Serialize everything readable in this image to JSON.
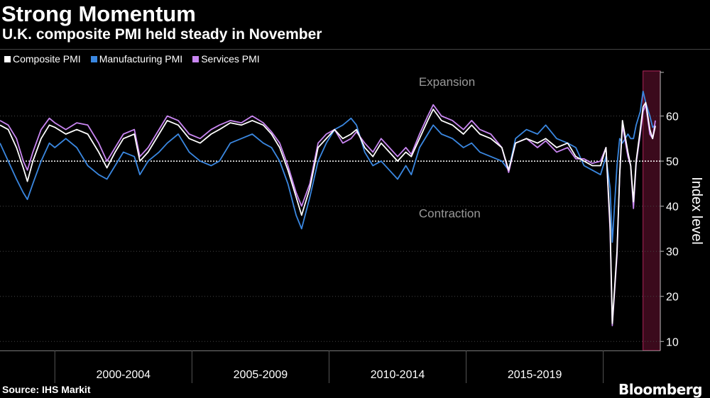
{
  "header": {
    "title": "Strong Momentum",
    "subtitle": "U.K. composite PMI held steady in November"
  },
  "legend": [
    {
      "label": "Composite PMI",
      "color": "#ffffff"
    },
    {
      "label": "Manufacturing PMI",
      "color": "#3a87e0"
    },
    {
      "label": "Services PMI",
      "color": "#c986f2"
    }
  ],
  "footer": {
    "source": "Source: IHS Markit",
    "brand": "Bloomberg"
  },
  "chart_data": {
    "type": "line",
    "title": "Strong Momentum",
    "subtitle": "U.K. composite PMI held steady in November",
    "ylabel": "Index level",
    "xlabel": "",
    "ylim": [
      8,
      70
    ],
    "yticks": [
      10,
      20,
      30,
      40,
      50,
      60
    ],
    "x_start": "1998-01",
    "x_end": "2021-11",
    "x_groups": [
      {
        "label": "2000-2004",
        "from": 2000,
        "to": 2005
      },
      {
        "label": "2005-2009",
        "from": 2005,
        "to": 2010
      },
      {
        "label": "2010-2014",
        "from": 2010,
        "to": 2015
      },
      {
        "label": "2015-2019",
        "from": 2015,
        "to": 2020
      }
    ],
    "x_separators": [
      2000,
      2005,
      2010,
      2015,
      2020
    ],
    "reference_line": 50,
    "annotations": [
      {
        "text": "Expansion",
        "x": 2014.3,
        "y": 67.5
      },
      {
        "text": "Contraction",
        "x": 2014.4,
        "y": 38.3
      }
    ],
    "highlight": {
      "from": 2021.45,
      "to": 2022.08
    },
    "series": [
      {
        "name": "Composite PMI",
        "color": "#ffffff",
        "points": [
          [
            1998.0,
            58
          ],
          [
            1998.3,
            57
          ],
          [
            1998.6,
            53
          ],
          [
            1998.85,
            48.5
          ],
          [
            1999.0,
            45.5
          ],
          [
            1999.2,
            50
          ],
          [
            1999.5,
            55
          ],
          [
            1999.8,
            58
          ],
          [
            2000.0,
            57.5
          ],
          [
            2000.4,
            56
          ],
          [
            2000.8,
            57
          ],
          [
            2001.2,
            56
          ],
          [
            2001.6,
            52
          ],
          [
            2001.9,
            48.5
          ],
          [
            2002.2,
            52
          ],
          [
            2002.5,
            55
          ],
          [
            2002.9,
            56
          ],
          [
            2003.1,
            50
          ],
          [
            2003.4,
            52
          ],
          [
            2003.8,
            56
          ],
          [
            2004.1,
            59
          ],
          [
            2004.5,
            58
          ],
          [
            2004.9,
            55
          ],
          [
            2005.3,
            54
          ],
          [
            2005.7,
            56
          ],
          [
            2006.0,
            57
          ],
          [
            2006.4,
            58.5
          ],
          [
            2006.8,
            58
          ],
          [
            2007.2,
            59
          ],
          [
            2007.6,
            58
          ],
          [
            2007.9,
            56
          ],
          [
            2008.2,
            53
          ],
          [
            2008.5,
            48
          ],
          [
            2008.8,
            42
          ],
          [
            2009.0,
            38
          ],
          [
            2009.3,
            44
          ],
          [
            2009.6,
            53
          ],
          [
            2009.9,
            55
          ],
          [
            2010.2,
            57
          ],
          [
            2010.5,
            55
          ],
          [
            2010.8,
            56
          ],
          [
            2011.0,
            57
          ],
          [
            2011.3,
            53
          ],
          [
            2011.6,
            51
          ],
          [
            2011.9,
            54
          ],
          [
            2012.2,
            52
          ],
          [
            2012.5,
            50
          ],
          [
            2012.8,
            52
          ],
          [
            2013.0,
            51
          ],
          [
            2013.3,
            55
          ],
          [
            2013.6,
            59
          ],
          [
            2013.8,
            61.5
          ],
          [
            2014.1,
            59
          ],
          [
            2014.5,
            58
          ],
          [
            2014.9,
            56
          ],
          [
            2015.2,
            58
          ],
          [
            2015.5,
            56
          ],
          [
            2015.9,
            55
          ],
          [
            2016.3,
            53
          ],
          [
            2016.55,
            48
          ],
          [
            2016.8,
            54
          ],
          [
            2017.2,
            55
          ],
          [
            2017.6,
            54
          ],
          [
            2017.9,
            55
          ],
          [
            2018.3,
            53
          ],
          [
            2018.7,
            54
          ],
          [
            2019.0,
            51
          ],
          [
            2019.3,
            50
          ],
          [
            2019.6,
            49
          ],
          [
            2019.9,
            49
          ],
          [
            2020.1,
            53
          ],
          [
            2020.25,
            36
          ],
          [
            2020.33,
            14
          ],
          [
            2020.5,
            30
          ],
          [
            2020.6,
            47
          ],
          [
            2020.7,
            59
          ],
          [
            2020.9,
            52
          ],
          [
            2021.0,
            49
          ],
          [
            2021.1,
            41
          ],
          [
            2021.2,
            50
          ],
          [
            2021.35,
            57
          ],
          [
            2021.45,
            62
          ],
          [
            2021.55,
            63
          ],
          [
            2021.7,
            57
          ],
          [
            2021.8,
            55
          ],
          [
            2021.9,
            57.8
          ]
        ]
      },
      {
        "name": "Manufacturing PMI",
        "color": "#3a87e0",
        "points": [
          [
            1998.0,
            54
          ],
          [
            1998.3,
            50
          ],
          [
            1998.6,
            46
          ],
          [
            1998.85,
            43
          ],
          [
            1999.0,
            41.5
          ],
          [
            1999.2,
            45
          ],
          [
            1999.5,
            50
          ],
          [
            1999.8,
            54
          ],
          [
            2000.0,
            53
          ],
          [
            2000.4,
            55
          ],
          [
            2000.8,
            53
          ],
          [
            2001.2,
            49
          ],
          [
            2001.6,
            47
          ],
          [
            2001.9,
            46
          ],
          [
            2002.2,
            49
          ],
          [
            2002.5,
            52
          ],
          [
            2002.9,
            51
          ],
          [
            2003.1,
            47
          ],
          [
            2003.4,
            50
          ],
          [
            2003.8,
            52
          ],
          [
            2004.1,
            54
          ],
          [
            2004.5,
            56
          ],
          [
            2004.9,
            52
          ],
          [
            2005.3,
            50
          ],
          [
            2005.7,
            49
          ],
          [
            2006.0,
            50
          ],
          [
            2006.4,
            54
          ],
          [
            2006.8,
            55
          ],
          [
            2007.2,
            56
          ],
          [
            2007.6,
            54
          ],
          [
            2007.9,
            53
          ],
          [
            2008.2,
            50
          ],
          [
            2008.5,
            45
          ],
          [
            2008.8,
            38
          ],
          [
            2009.0,
            35
          ],
          [
            2009.3,
            42
          ],
          [
            2009.6,
            50
          ],
          [
            2009.9,
            54
          ],
          [
            2010.2,
            57
          ],
          [
            2010.5,
            58
          ],
          [
            2010.8,
            59.5
          ],
          [
            2011.0,
            58
          ],
          [
            2011.3,
            52
          ],
          [
            2011.6,
            49
          ],
          [
            2011.9,
            50
          ],
          [
            2012.2,
            48
          ],
          [
            2012.5,
            46
          ],
          [
            2012.8,
            49
          ],
          [
            2013.0,
            47
          ],
          [
            2013.3,
            53
          ],
          [
            2013.6,
            56
          ],
          [
            2013.8,
            58
          ],
          [
            2014.1,
            56
          ],
          [
            2014.5,
            55
          ],
          [
            2014.9,
            53
          ],
          [
            2015.2,
            54
          ],
          [
            2015.5,
            52
          ],
          [
            2015.9,
            51
          ],
          [
            2016.3,
            50
          ],
          [
            2016.55,
            48
          ],
          [
            2016.8,
            55
          ],
          [
            2017.2,
            57
          ],
          [
            2017.6,
            56
          ],
          [
            2017.9,
            58
          ],
          [
            2018.3,
            55
          ],
          [
            2018.7,
            54
          ],
          [
            2019.0,
            53
          ],
          [
            2019.3,
            49
          ],
          [
            2019.6,
            48
          ],
          [
            2019.9,
            47
          ],
          [
            2020.1,
            51
          ],
          [
            2020.25,
            44
          ],
          [
            2020.33,
            32
          ],
          [
            2020.5,
            49
          ],
          [
            2020.6,
            55
          ],
          [
            2020.7,
            54
          ],
          [
            2020.9,
            56
          ],
          [
            2021.0,
            55
          ],
          [
            2021.1,
            55
          ],
          [
            2021.2,
            58
          ],
          [
            2021.35,
            61
          ],
          [
            2021.45,
            65.5
          ],
          [
            2021.55,
            63
          ],
          [
            2021.7,
            60
          ],
          [
            2021.8,
            57.5
          ],
          [
            2021.9,
            58
          ]
        ]
      },
      {
        "name": "Services PMI",
        "color": "#c986f2",
        "points": [
          [
            1998.0,
            59
          ],
          [
            1998.3,
            58
          ],
          [
            1998.6,
            55
          ],
          [
            1998.85,
            50
          ],
          [
            1999.0,
            48
          ],
          [
            1999.2,
            52
          ],
          [
            1999.5,
            57
          ],
          [
            1999.8,
            59.5
          ],
          [
            2000.0,
            58.5
          ],
          [
            2000.4,
            57
          ],
          [
            2000.8,
            58.5
          ],
          [
            2001.2,
            58
          ],
          [
            2001.6,
            54
          ],
          [
            2001.9,
            50
          ],
          [
            2002.2,
            53
          ],
          [
            2002.5,
            56
          ],
          [
            2002.9,
            57
          ],
          [
            2003.1,
            51
          ],
          [
            2003.4,
            53
          ],
          [
            2003.8,
            57
          ],
          [
            2004.1,
            60
          ],
          [
            2004.5,
            59
          ],
          [
            2004.9,
            56
          ],
          [
            2005.3,
            55
          ],
          [
            2005.7,
            57
          ],
          [
            2006.0,
            58
          ],
          [
            2006.4,
            59
          ],
          [
            2006.8,
            58.5
          ],
          [
            2007.2,
            60
          ],
          [
            2007.6,
            58.5
          ],
          [
            2007.9,
            56.5
          ],
          [
            2008.2,
            54
          ],
          [
            2008.5,
            49
          ],
          [
            2008.8,
            43
          ],
          [
            2009.0,
            40
          ],
          [
            2009.3,
            45
          ],
          [
            2009.6,
            54
          ],
          [
            2009.9,
            56
          ],
          [
            2010.2,
            57
          ],
          [
            2010.5,
            54
          ],
          [
            2010.8,
            55
          ],
          [
            2011.0,
            56.5
          ],
          [
            2011.3,
            54
          ],
          [
            2011.6,
            52
          ],
          [
            2011.9,
            55
          ],
          [
            2012.2,
            53
          ],
          [
            2012.5,
            51
          ],
          [
            2012.8,
            53
          ],
          [
            2013.0,
            51.5
          ],
          [
            2013.3,
            56
          ],
          [
            2013.6,
            60
          ],
          [
            2013.8,
            62.5
          ],
          [
            2014.1,
            60
          ],
          [
            2014.5,
            59
          ],
          [
            2014.9,
            57
          ],
          [
            2015.2,
            59
          ],
          [
            2015.5,
            57
          ],
          [
            2015.9,
            56
          ],
          [
            2016.3,
            53
          ],
          [
            2016.55,
            47.5
          ],
          [
            2016.8,
            54
          ],
          [
            2017.2,
            55
          ],
          [
            2017.6,
            53
          ],
          [
            2017.9,
            54.5
          ],
          [
            2018.3,
            52
          ],
          [
            2018.7,
            53
          ],
          [
            2019.0,
            50.5
          ],
          [
            2019.3,
            50.5
          ],
          [
            2019.6,
            49.5
          ],
          [
            2019.9,
            50
          ],
          [
            2020.1,
            53
          ],
          [
            2020.25,
            34.5
          ],
          [
            2020.33,
            13.5
          ],
          [
            2020.5,
            29
          ],
          [
            2020.6,
            47
          ],
          [
            2020.7,
            58
          ],
          [
            2020.9,
            51
          ],
          [
            2021.0,
            49
          ],
          [
            2021.1,
            39.5
          ],
          [
            2021.2,
            49.5
          ],
          [
            2021.35,
            56
          ],
          [
            2021.45,
            61
          ],
          [
            2021.55,
            62.5
          ],
          [
            2021.7,
            56
          ],
          [
            2021.8,
            55
          ],
          [
            2021.9,
            59
          ]
        ]
      }
    ]
  }
}
